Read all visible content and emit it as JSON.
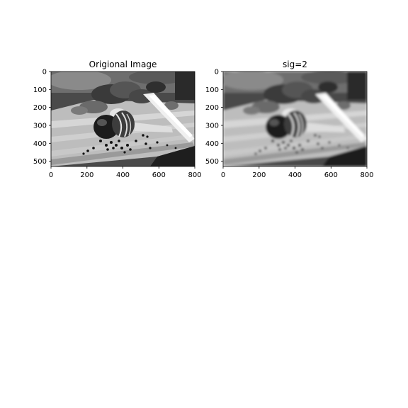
{
  "figure": {
    "panels": [
      {
        "id": "original",
        "title": "Origional Image",
        "xticks": [
          "0",
          "200",
          "400",
          "600",
          "800"
        ],
        "yticks": [
          "0",
          "100",
          "200",
          "300",
          "400",
          "500"
        ],
        "image_shape": [
          530,
          800
        ],
        "colormap": "gray",
        "blur_sigma": 0
      },
      {
        "id": "blurred",
        "title": "sig=2",
        "xticks": [
          "0",
          "200",
          "400",
          "600",
          "800"
        ],
        "yticks": [
          "0",
          "100",
          "200",
          "300",
          "400",
          "500"
        ],
        "image_shape": [
          530,
          800
        ],
        "colormap": "gray",
        "blur_sigma": 2
      }
    ]
  }
}
